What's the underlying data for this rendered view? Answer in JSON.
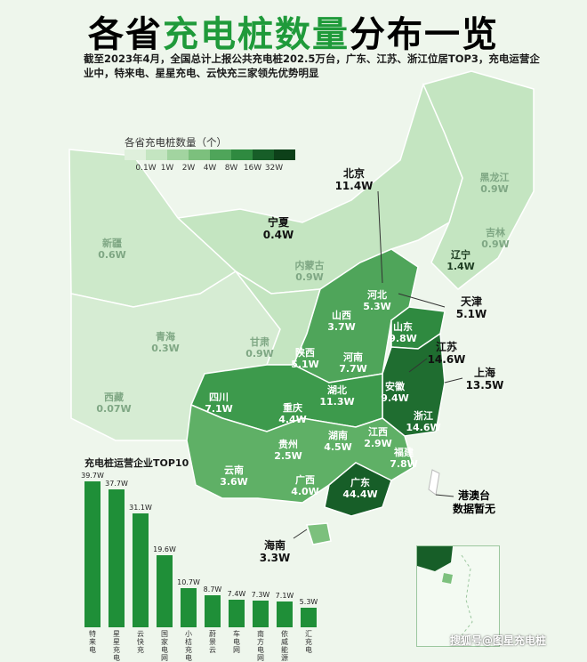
{
  "header": {
    "title_a": "各省",
    "title_hl": "充电桩数量",
    "title_b": "分布一览",
    "subtitle": "截至2023年4月，全国总计上报公共充电桩202.5万台，广东、江苏、浙江位居TOP3，充电运营企业中，特来电、星星充电、云快充三家领先优势明显"
  },
  "legend": {
    "title": "各省充电桩数量（个）",
    "labels": [
      "0.1W",
      "1W",
      "2W",
      "4W",
      "8W",
      "16W",
      "32W"
    ],
    "colors": [
      "#dff0dc",
      "#c4e5c1",
      "#a2d4a0",
      "#7cc07d",
      "#4fa55a",
      "#2f8a40",
      "#175e28"
    ]
  },
  "provinces": [
    {
      "name": "北京",
      "value": "11.4W"
    },
    {
      "name": "黑龙江",
      "value": "0.9W"
    },
    {
      "name": "吉林",
      "value": "0.9W"
    },
    {
      "name": "辽宁",
      "value": "1.4W"
    },
    {
      "name": "天津",
      "value": "5.1W"
    },
    {
      "name": "河北",
      "value": "5.3W"
    },
    {
      "name": "宁夏",
      "value": "0.4W"
    },
    {
      "name": "内蒙古",
      "value": "0.9W"
    },
    {
      "name": "新疆",
      "value": "0.6W"
    },
    {
      "name": "山西",
      "value": "3.7W"
    },
    {
      "name": "山东",
      "value": "9.8W"
    },
    {
      "name": "青海",
      "value": "0.3W"
    },
    {
      "name": "甘肃",
      "value": "0.9W"
    },
    {
      "name": "陕西",
      "value": "5.1W"
    },
    {
      "name": "河南",
      "value": "7.7W"
    },
    {
      "name": "江苏",
      "value": "14.6W"
    },
    {
      "name": "上海",
      "value": "13.5W"
    },
    {
      "name": "西藏",
      "value": "0.07W"
    },
    {
      "name": "四川",
      "value": "7.1W"
    },
    {
      "name": "湖北",
      "value": "11.3W"
    },
    {
      "name": "安徽",
      "value": "9.4W"
    },
    {
      "name": "重庆",
      "value": "4.4W"
    },
    {
      "name": "浙江",
      "value": "14.6W"
    },
    {
      "name": "贵州",
      "value": "2.5W"
    },
    {
      "name": "湖南",
      "value": "4.5W"
    },
    {
      "name": "江西",
      "value": "2.9W"
    },
    {
      "name": "福建",
      "value": "7.8W"
    },
    {
      "name": "云南",
      "value": "3.6W"
    },
    {
      "name": "广西",
      "value": "4.0W"
    },
    {
      "name": "广东",
      "value": "44.4W"
    },
    {
      "name": "海南",
      "value": "3.3W"
    }
  ],
  "no_data": {
    "region": "港澳台",
    "text": "数据暂无"
  },
  "chart_data": {
    "type": "bar",
    "title": "充电桩运营企业TOP10",
    "categories": [
      "特来电",
      "星星充电",
      "云快充",
      "国家电网",
      "小桔充电",
      "蔚景云",
      "车电网",
      "南方电网",
      "依威能源",
      "汇充电"
    ],
    "values": [
      39.7,
      37.7,
      31.1,
      19.6,
      10.7,
      8.7,
      7.4,
      7.3,
      7.1,
      5.3
    ],
    "value_labels": [
      "39.7W",
      "37.7W",
      "31.1W",
      "19.6W",
      "10.7W",
      "8.7W",
      "7.4W",
      "7.3W",
      "7.1W",
      "5.3W"
    ],
    "ylim": [
      0,
      40
    ],
    "bar_color": "#1f8f38"
  },
  "watermark": "搜狐号@图星充电桩"
}
